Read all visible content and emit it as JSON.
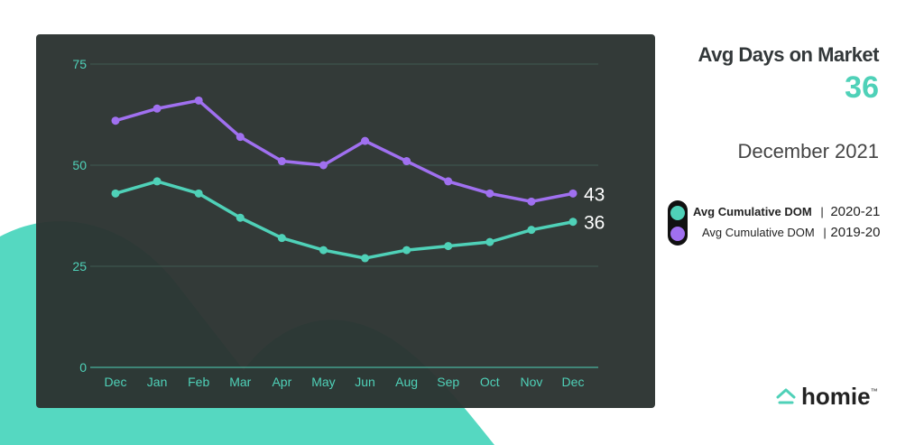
{
  "headline": {
    "title": "Avg Days on Market",
    "value": "36",
    "period": "December 2021"
  },
  "legend": [
    {
      "label": "Avg Cumulative DOM",
      "separator": "|",
      "years": "2020-21",
      "color": "#4fd1b8",
      "bold": true
    },
    {
      "label": "Avg Cumulative DOM",
      "separator": "|",
      "years": "2019-20",
      "color": "#a070f0",
      "bold": false
    }
  ],
  "logo": {
    "text": "homie",
    "tm": "™"
  },
  "colors": {
    "accent": "#4fd1b8",
    "purple": "#a070f0",
    "panel": "#2c3432"
  },
  "chart_data": {
    "type": "line",
    "categories": [
      "Dec",
      "Jan",
      "Feb",
      "Mar",
      "Apr",
      "May",
      "Jun",
      "Aug",
      "Sep",
      "Oct",
      "Nov",
      "Dec"
    ],
    "ylim": [
      0,
      75
    ],
    "yticks": [
      0,
      25,
      50,
      75
    ],
    "grid": true,
    "series": [
      {
        "name": "Avg Cumulative DOM | 2020-21",
        "color": "#4fd1b8",
        "values": [
          43,
          46,
          43,
          37,
          32,
          29,
          27,
          29,
          30,
          31,
          34,
          36
        ],
        "end_label": "36"
      },
      {
        "name": "Avg Cumulative DOM | 2019-20",
        "color": "#a070f0",
        "values": [
          61,
          64,
          66,
          57,
          51,
          50,
          56,
          51,
          46,
          43,
          41,
          43
        ],
        "end_label": "43"
      }
    ]
  }
}
